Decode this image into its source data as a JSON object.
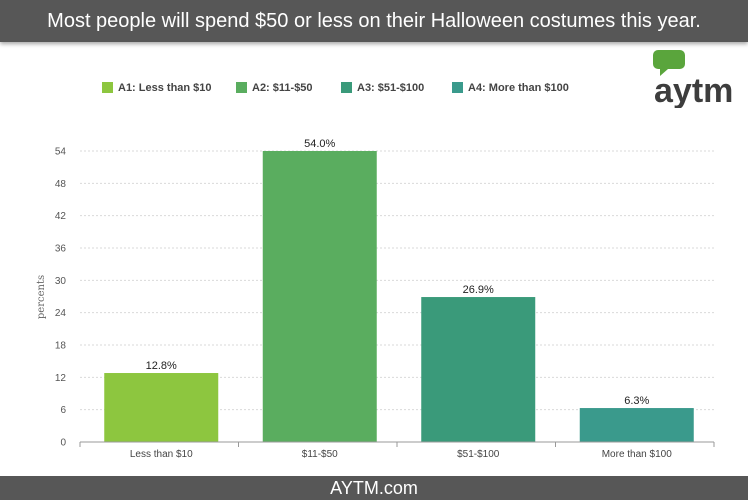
{
  "header": {
    "title": "Most people will spend $50 or less on their Halloween costumes this year."
  },
  "footer": {
    "text": "AYTM.com"
  },
  "logo": {
    "text": "aytm",
    "bubble_color": "#5aa53c",
    "text_color": "#3d3d3d"
  },
  "chart_data": {
    "type": "bar",
    "categories": [
      "Less than $10",
      "$11-$50",
      "$51-$100",
      "More than $100"
    ],
    "values": [
      12.8,
      54.0,
      26.9,
      6.3
    ],
    "value_labels": [
      "12.8%",
      "54.0%",
      "26.9%",
      "6.3%"
    ],
    "colors": [
      "#8dc63f",
      "#5aad5f",
      "#3a9a7a",
      "#3a9a8c"
    ],
    "legend": [
      "A1: Less than $10",
      "A2: $11-$50",
      "A3: $51-$100",
      "A4: More than $100"
    ],
    "legend_position": "top",
    "ylabel": "percents",
    "xlabel": "",
    "ylim": [
      0,
      54
    ],
    "yticks": [
      0,
      6,
      12,
      18,
      24,
      30,
      36,
      42,
      48,
      54
    ],
    "grid": true
  }
}
